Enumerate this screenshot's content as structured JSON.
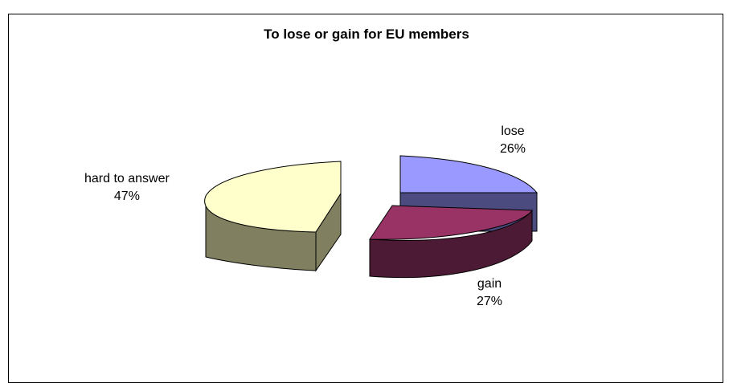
{
  "chart_data": {
    "type": "pie",
    "title": "To lose or gain for EU members",
    "slices": [
      {
        "name": "lose",
        "value": 26,
        "label": "26%",
        "color": "#9999ff"
      },
      {
        "name": "gain",
        "value": 27,
        "label": "27%",
        "color": "#993366"
      },
      {
        "name": "hard to answer",
        "value": 47,
        "label": "47%",
        "color": "#ffffcc"
      }
    ],
    "style": "3d-exploded"
  }
}
